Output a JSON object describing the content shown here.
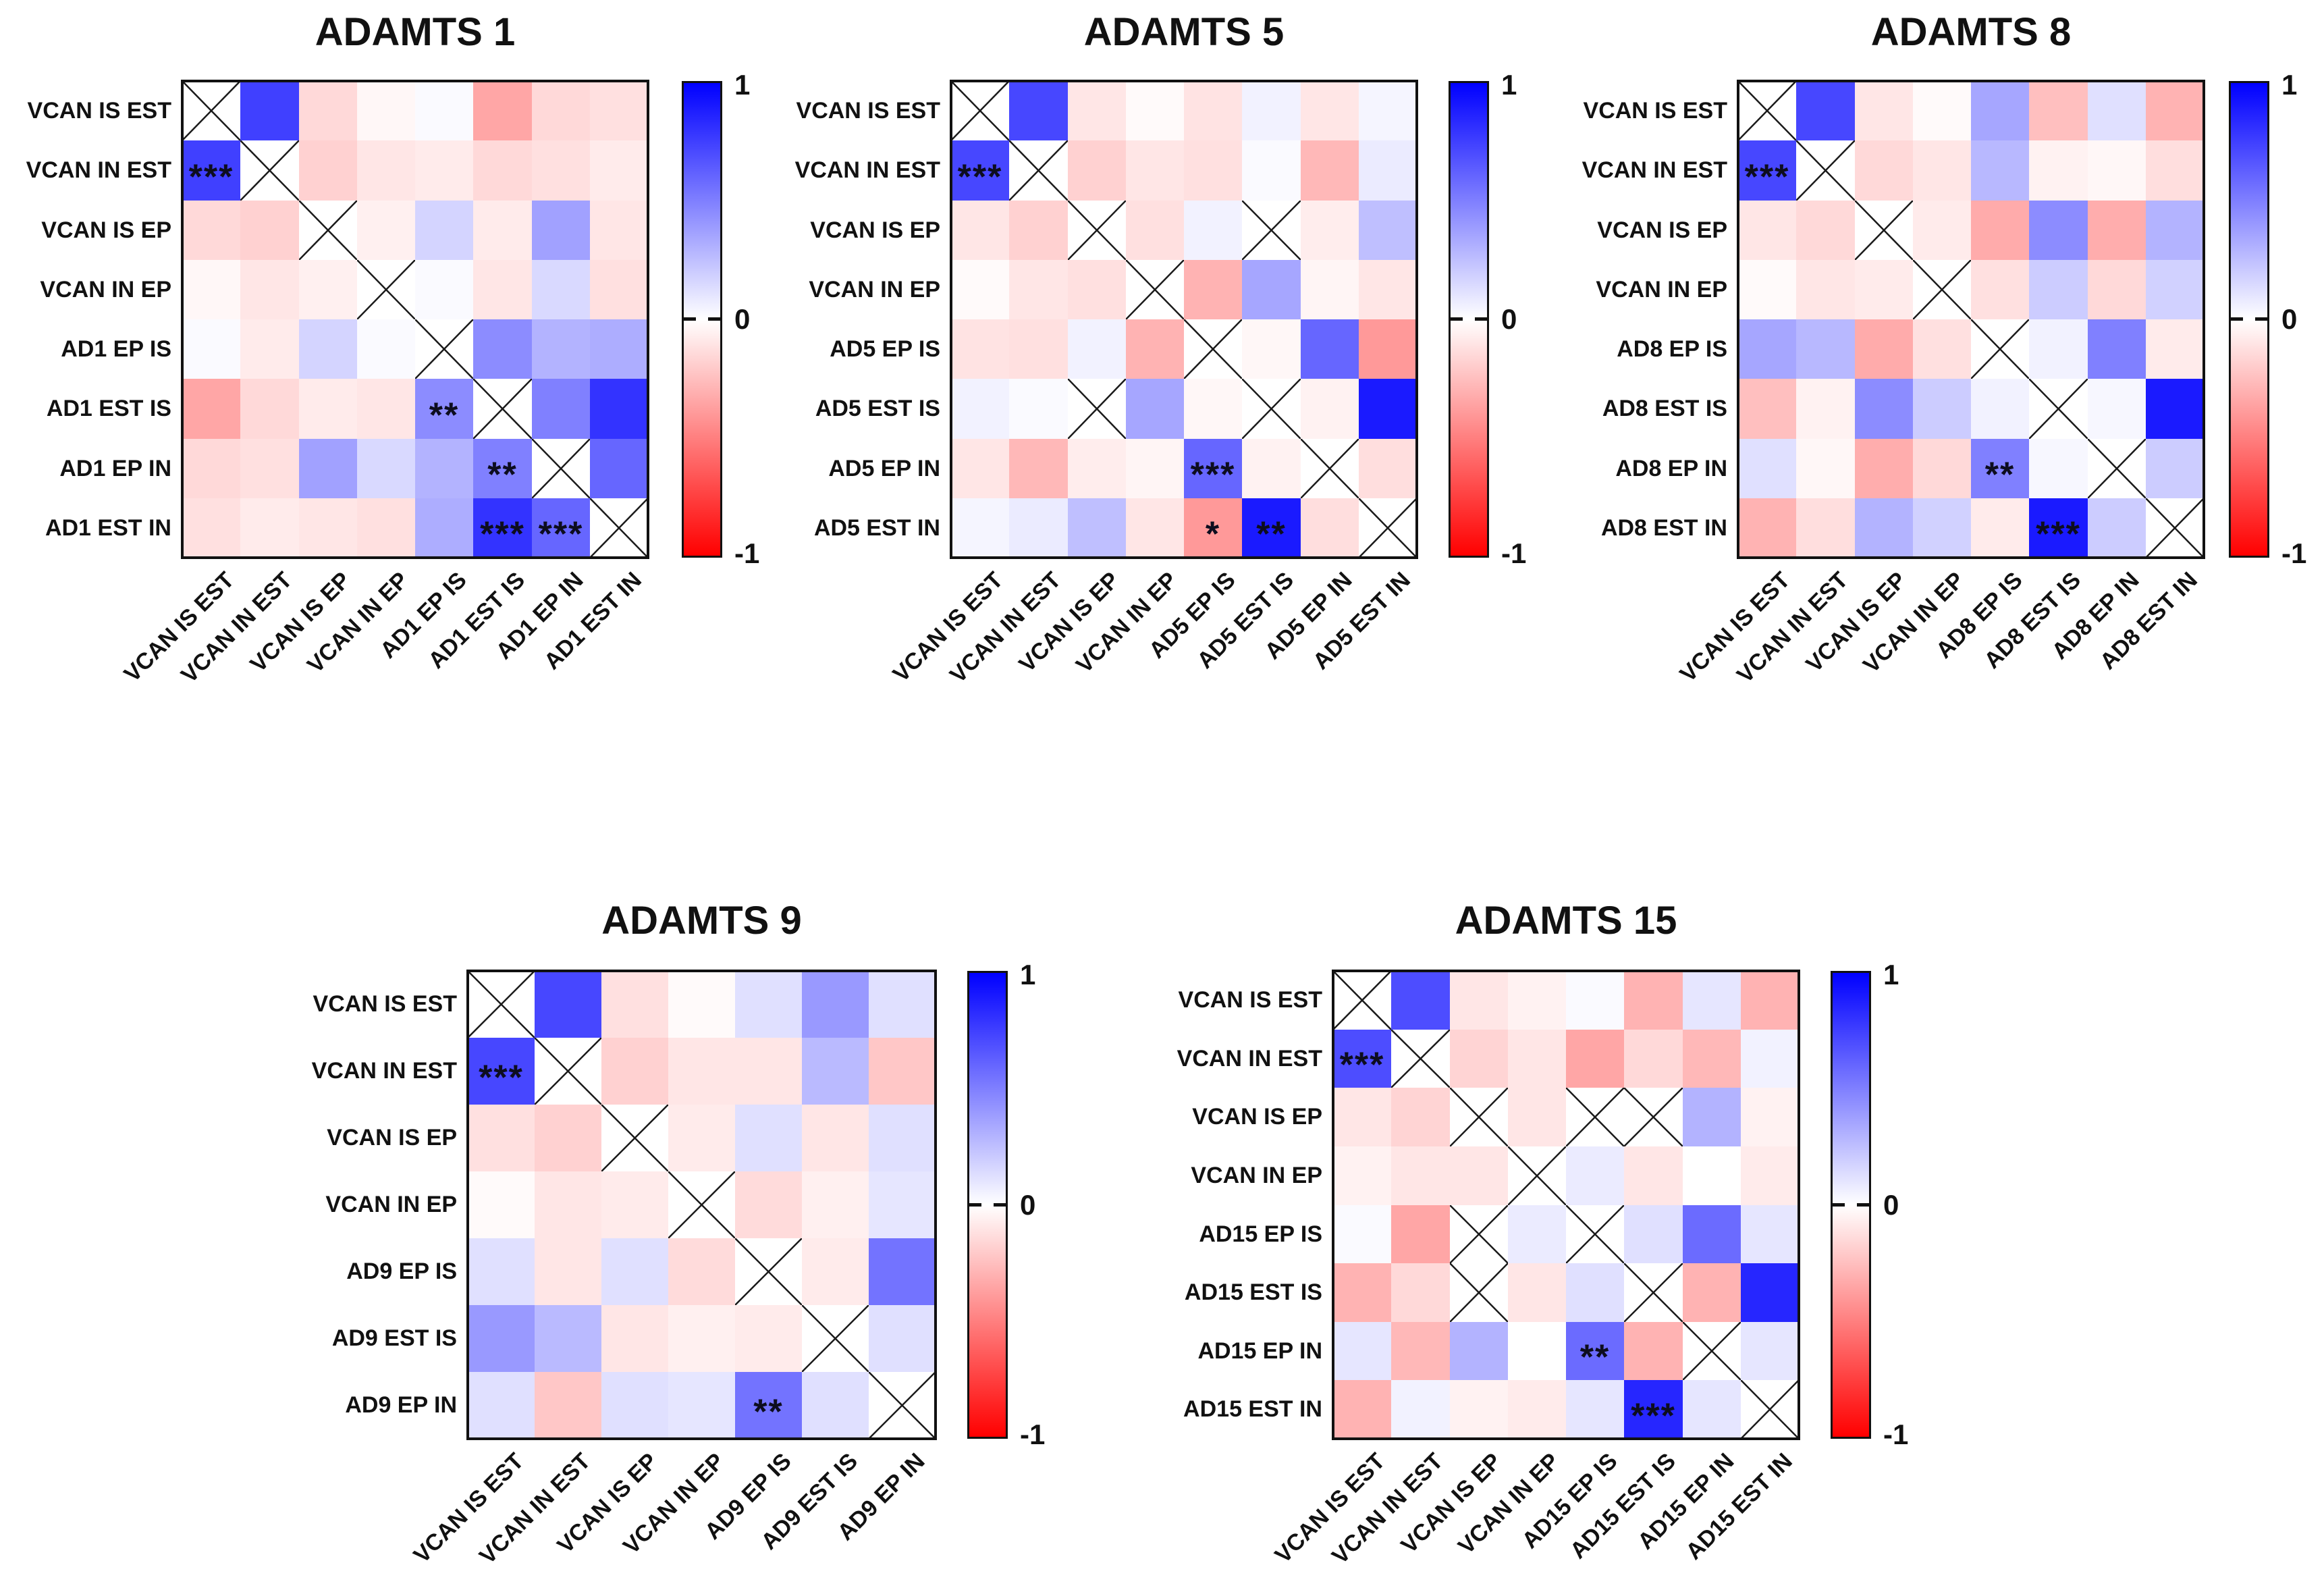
{
  "figure_background": "#ffffff",
  "colormap": {
    "positive": "#0000FF",
    "neutral": "#FFFFFF",
    "negative": "#FF0000"
  },
  "chart_data": [
    {
      "type": "heatmap",
      "title": "ADAMTS 1",
      "labels": [
        "VCAN IS EST",
        "VCAN IN EST",
        "VCAN IS EP",
        "VCAN IN EP",
        "AD1 EP IS",
        "AD1 EST IS",
        "AD1 EP IN",
        "AD1 EST IN"
      ],
      "values": [
        [
          null,
          0.75,
          -0.15,
          -0.03,
          0.02,
          -0.35,
          -0.15,
          -0.12
        ],
        [
          0.75,
          null,
          -0.18,
          -0.1,
          -0.08,
          -0.15,
          -0.12,
          -0.08
        ],
        [
          -0.15,
          -0.18,
          null,
          -0.06,
          0.17,
          -0.08,
          0.37,
          -0.1
        ],
        [
          -0.03,
          -0.1,
          -0.06,
          null,
          0.02,
          -0.1,
          0.15,
          -0.12
        ],
        [
          0.02,
          -0.08,
          0.17,
          0.02,
          null,
          0.45,
          0.3,
          0.32
        ],
        [
          -0.35,
          -0.15,
          -0.08,
          -0.1,
          0.45,
          null,
          0.5,
          0.8
        ],
        [
          -0.15,
          -0.12,
          0.37,
          0.15,
          0.3,
          0.5,
          null,
          0.6
        ],
        [
          -0.12,
          -0.08,
          -0.1,
          -0.12,
          0.32,
          0.8,
          0.6,
          null
        ]
      ],
      "stars": [
        {
          "row": 1,
          "col": 0,
          "text": "***"
        },
        {
          "row": 5,
          "col": 4,
          "text": "**"
        },
        {
          "row": 6,
          "col": 5,
          "text": "**"
        },
        {
          "row": 7,
          "col": 5,
          "text": "***"
        },
        {
          "row": 7,
          "col": 6,
          "text": "***"
        }
      ],
      "colorbar": {
        "range": [
          -1,
          1
        ],
        "ticks": [
          "1",
          "0",
          "-1"
        ]
      }
    },
    {
      "type": "heatmap",
      "title": "ADAMTS 5",
      "labels": [
        "VCAN IS EST",
        "VCAN IN EST",
        "VCAN IS EP",
        "VCAN IN EP",
        "AD5 EP IS",
        "AD5 EST IS",
        "AD5 EP IN",
        "AD5 EST IN"
      ],
      "values": [
        [
          null,
          0.72,
          -0.1,
          -0.02,
          -0.11,
          0.05,
          -0.1,
          0.04
        ],
        [
          0.72,
          null,
          -0.18,
          -0.1,
          -0.12,
          0.02,
          -0.28,
          0.08
        ],
        [
          -0.1,
          -0.18,
          null,
          -0.12,
          0.05,
          null,
          -0.07,
          0.25
        ],
        [
          -0.02,
          -0.1,
          -0.12,
          null,
          -0.3,
          0.35,
          -0.04,
          -0.1
        ],
        [
          -0.11,
          -0.12,
          0.05,
          -0.3,
          null,
          -0.03,
          0.6,
          -0.4
        ],
        [
          0.05,
          0.02,
          null,
          0.35,
          -0.03,
          null,
          -0.05,
          0.9
        ],
        [
          -0.1,
          -0.28,
          -0.07,
          -0.04,
          0.6,
          -0.05,
          null,
          -0.13
        ],
        [
          0.04,
          0.08,
          0.25,
          -0.1,
          -0.4,
          0.9,
          -0.13,
          null
        ]
      ],
      "stars": [
        {
          "row": 1,
          "col": 0,
          "text": "***"
        },
        {
          "row": 6,
          "col": 4,
          "text": "***"
        },
        {
          "row": 7,
          "col": 4,
          "text": "*"
        },
        {
          "row": 7,
          "col": 5,
          "text": "**"
        }
      ],
      "colorbar": {
        "range": [
          -1,
          1
        ],
        "ticks": [
          "1",
          "0",
          "-1"
        ]
      }
    },
    {
      "type": "heatmap",
      "title": "ADAMTS 8",
      "labels": [
        "VCAN IS EST",
        "VCAN IN EST",
        "VCAN IS EP",
        "VCAN IN EP",
        "AD8 EP IS",
        "AD8 EST IS",
        "AD8 EP IN",
        "AD8 EST IN"
      ],
      "values": [
        [
          null,
          0.72,
          -0.1,
          -0.02,
          0.35,
          -0.25,
          0.12,
          -0.3
        ],
        [
          0.72,
          null,
          -0.15,
          -0.1,
          0.28,
          -0.05,
          -0.03,
          -0.13
        ],
        [
          -0.1,
          -0.15,
          null,
          -0.08,
          -0.33,
          0.45,
          -0.32,
          0.3
        ],
        [
          -0.02,
          -0.1,
          -0.08,
          null,
          -0.12,
          0.2,
          -0.15,
          0.18
        ],
        [
          0.35,
          0.28,
          -0.33,
          -0.12,
          null,
          0.05,
          0.5,
          -0.08
        ],
        [
          -0.25,
          -0.05,
          0.45,
          0.2,
          0.05,
          null,
          0.03,
          0.9
        ],
        [
          0.12,
          -0.03,
          -0.32,
          -0.15,
          0.5,
          0.03,
          null,
          0.2
        ],
        [
          -0.3,
          -0.13,
          0.3,
          0.18,
          -0.08,
          0.9,
          0.2,
          null
        ]
      ],
      "stars": [
        {
          "row": 1,
          "col": 0,
          "text": "***"
        },
        {
          "row": 6,
          "col": 4,
          "text": "**"
        },
        {
          "row": 7,
          "col": 5,
          "text": "***"
        }
      ],
      "colorbar": {
        "range": [
          -1,
          1
        ],
        "ticks": [
          "1",
          "0",
          "-1"
        ]
      }
    },
    {
      "type": "heatmap",
      "title": "ADAMTS 9",
      "labels": [
        "VCAN IS EST",
        "VCAN IN EST",
        "VCAN IS EP",
        "VCAN IN EP",
        "AD9 EP IS",
        "AD9 EST IS",
        "AD9 EP IN"
      ],
      "values": [
        [
          null,
          0.72,
          -0.12,
          -0.02,
          0.12,
          0.4,
          0.12
        ],
        [
          0.72,
          null,
          -0.18,
          -0.1,
          -0.1,
          0.27,
          -0.22
        ],
        [
          -0.12,
          -0.18,
          null,
          -0.08,
          0.12,
          -0.1,
          0.12
        ],
        [
          -0.02,
          -0.1,
          -0.08,
          null,
          -0.14,
          -0.06,
          0.1
        ],
        [
          0.12,
          -0.1,
          0.12,
          -0.14,
          null,
          -0.08,
          0.55
        ],
        [
          0.4,
          0.27,
          -0.1,
          -0.06,
          -0.08,
          null,
          0.12
        ],
        [
          0.12,
          -0.22,
          0.12,
          0.1,
          0.55,
          0.12,
          null
        ]
      ],
      "stars": [
        {
          "row": 1,
          "col": 0,
          "text": "***"
        },
        {
          "row": 6,
          "col": 4,
          "text": "**"
        }
      ],
      "colorbar": {
        "range": [
          -1,
          1
        ],
        "ticks": [
          "1",
          "0",
          "-1"
        ]
      }
    },
    {
      "type": "heatmap",
      "title": "ADAMTS 15",
      "labels": [
        "VCAN IS EST",
        "VCAN IN EST",
        "VCAN IS EP",
        "VCAN IN EP",
        "AD15 EP IS",
        "AD15 EST IS",
        "AD15 EP IN",
        "AD15 EST IN"
      ],
      "values": [
        [
          null,
          0.7,
          -0.1,
          -0.05,
          0.02,
          -0.3,
          0.1,
          -0.3
        ],
        [
          0.7,
          null,
          -0.17,
          -0.1,
          -0.35,
          -0.15,
          -0.28,
          0.05
        ],
        [
          -0.1,
          -0.17,
          null,
          -0.1,
          null,
          null,
          0.3,
          -0.05
        ],
        [
          -0.05,
          -0.1,
          -0.1,
          null,
          0.08,
          -0.1,
          0.0,
          -0.08
        ],
        [
          0.02,
          -0.35,
          null,
          0.08,
          null,
          0.12,
          0.58,
          0.1
        ],
        [
          -0.3,
          -0.15,
          null,
          -0.1,
          0.12,
          null,
          -0.3,
          0.85
        ],
        [
          0.1,
          -0.28,
          0.3,
          0.0,
          0.58,
          -0.3,
          null,
          0.1
        ],
        [
          -0.3,
          0.05,
          -0.05,
          -0.08,
          0.1,
          0.85,
          0.1,
          null
        ]
      ],
      "stars": [
        {
          "row": 1,
          "col": 0,
          "text": "***"
        },
        {
          "row": 6,
          "col": 4,
          "text": "**"
        },
        {
          "row": 7,
          "col": 5,
          "text": "***"
        }
      ],
      "colorbar": {
        "range": [
          -1,
          1
        ],
        "ticks": [
          "1",
          "0",
          "-1"
        ]
      }
    }
  ]
}
